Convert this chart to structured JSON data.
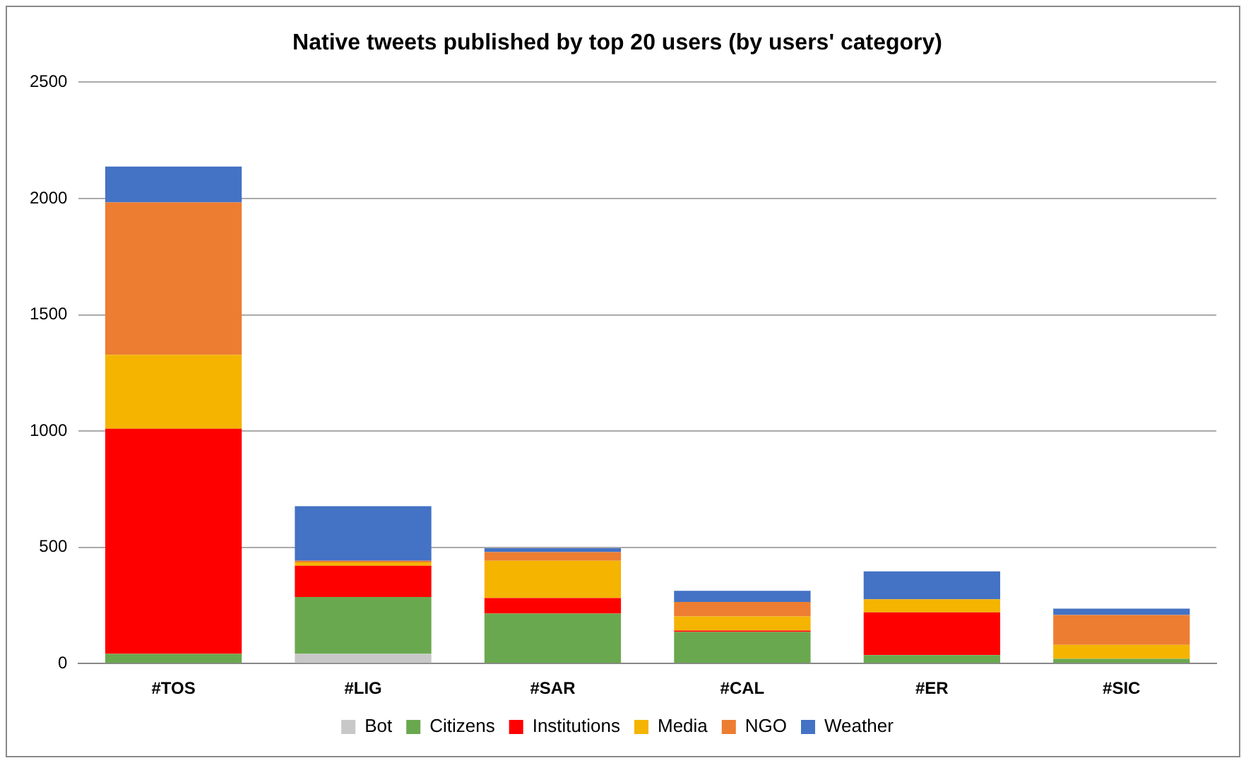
{
  "chart_data": {
    "type": "bar",
    "title": "Native tweets published by top 20 users (by users' category)",
    "categories": [
      "#TOS",
      "#LIG",
      "#SAR",
      "#CAL",
      "#ER",
      "#SIC"
    ],
    "stacked": true,
    "series": [
      {
        "name": "Bot",
        "color": "#c8c8c8",
        "values": [
          0,
          42,
          0,
          0,
          0,
          0
        ]
      },
      {
        "name": "Citizens",
        "color": "#6aa84f",
        "values": [
          42,
          244,
          215,
          136,
          36,
          20
        ]
      },
      {
        "name": "Institutions",
        "color": "#ff0000",
        "values": [
          968,
          135,
          67,
          6,
          184,
          0
        ]
      },
      {
        "name": "Media",
        "color": "#f4b400",
        "values": [
          318,
          14,
          160,
          61,
          56,
          60
        ]
      },
      {
        "name": "NGO",
        "color": "#ed7d31",
        "values": [
          655,
          7,
          37,
          62,
          0,
          129
        ]
      },
      {
        "name": "Weather",
        "color": "#4472c4",
        "values": [
          154,
          235,
          17,
          48,
          120,
          27
        ]
      }
    ],
    "ylim": [
      0,
      2500
    ],
    "yticks": [
      0,
      500,
      1000,
      1500,
      2000,
      2500
    ],
    "grid": "y",
    "legend": "bottom"
  }
}
